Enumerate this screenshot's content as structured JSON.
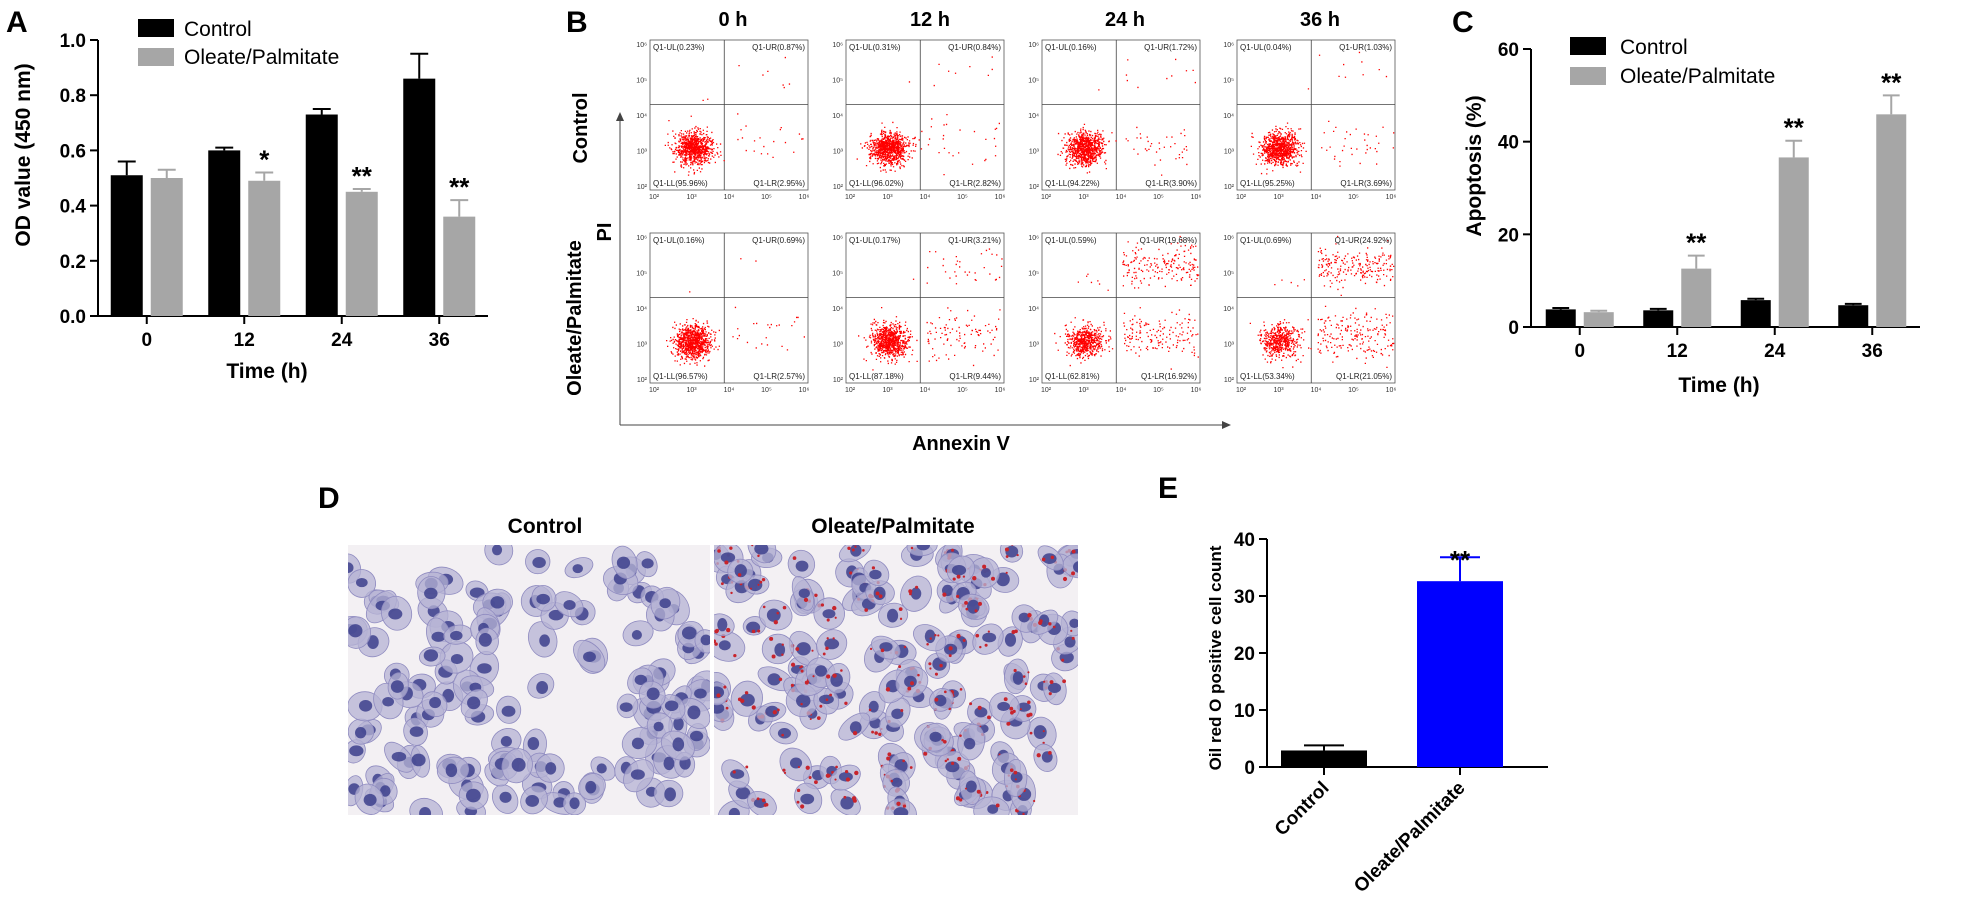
{
  "colors": {
    "control": "#000000",
    "oleate": "#a6a6a6",
    "oil_treated": "#0000ff",
    "flow_dot": "#ff0000",
    "stain_bg": "#f3f0f3",
    "nucleus": "#3c3f8c",
    "cytoplasm": "#b6b3d4",
    "lipid": "#c8242c"
  },
  "icons": {
    "micro_control": "hematoxylin-stained-cells-image",
    "micro_oleate": "oil-red-o-stained-cells-image"
  },
  "panel_letters": [
    "A",
    "B",
    "C",
    "D",
    "E"
  ],
  "chart_data": [
    {
      "panel": "A",
      "type": "bar",
      "categories": [
        "0",
        "12",
        "24",
        "36"
      ],
      "xlabel": "Time (h)",
      "ylabel": "OD value (450 nm)",
      "ylim": [
        0,
        1.0
      ],
      "yticks": [
        "0.0",
        "0.2",
        "0.4",
        "0.6",
        "0.8",
        "1.0"
      ],
      "legend": "top-left",
      "series": [
        {
          "name": "Control",
          "values": [
            0.51,
            0.6,
            0.73,
            0.86
          ],
          "errors": [
            0.05,
            0.01,
            0.02,
            0.09
          ]
        },
        {
          "name": "Oleate/Palmitate",
          "values": [
            0.5,
            0.49,
            0.45,
            0.36
          ],
          "errors": [
            0.03,
            0.03,
            0.01,
            0.06
          ]
        }
      ],
      "annotations": [
        "",
        "*",
        "**",
        "**"
      ]
    },
    {
      "panel": "B",
      "type": "scatter",
      "columns": [
        "0 h",
        "12 h",
        "24 h",
        "36 h"
      ],
      "rows": [
        "Control",
        "Oleate/Palmitate"
      ],
      "xlabel": "Annexin V",
      "ylabel": "PI",
      "tick_labels": [
        "10²",
        "10³",
        "10⁴",
        "10⁵",
        "10⁶"
      ],
      "quadrants": [
        [
          {
            "UL": "Q1-UL(0.23%)",
            "UR": "Q1-UR(0.87%)",
            "LL": "Q1-LL(95.96%)",
            "LR": "Q1-LR(2.95%)"
          },
          {
            "UL": "Q1-UL(0.31%)",
            "UR": "Q1-UR(0.84%)",
            "LL": "Q1-LL(96.02%)",
            "LR": "Q1-LR(2.82%)"
          },
          {
            "UL": "Q1-UL(0.16%)",
            "UR": "Q1-UR(1.72%)",
            "LL": "Q1-LL(94.22%)",
            "LR": "Q1-LR(3.90%)"
          },
          {
            "UL": "Q1-UL(0.04%)",
            "UR": "Q1-UR(1.03%)",
            "LL": "Q1-LL(95.25%)",
            "LR": "Q1-LR(3.69%)"
          }
        ],
        [
          {
            "UL": "Q1-UL(0.16%)",
            "UR": "Q1-UR(0.69%)",
            "LL": "Q1-LL(96.57%)",
            "LR": "Q1-LR(2.57%)"
          },
          {
            "UL": "Q1-UL(0.17%)",
            "UR": "Q1-UR(3.21%)",
            "LL": "Q1-LL(87.18%)",
            "LR": "Q1-LR(9.44%)"
          },
          {
            "UL": "Q1-UL(0.59%)",
            "UR": "Q1-UR(19.68%)",
            "LL": "Q1-LL(62.81%)",
            "LR": "Q1-LR(16.92%)"
          },
          {
            "UL": "Q1-UL(0.69%)",
            "UR": "Q1-UR(24.92%)",
            "LL": "Q1-LL(53.34%)",
            "LR": "Q1-LR(21.05%)"
          }
        ]
      ]
    },
    {
      "panel": "C",
      "type": "bar",
      "categories": [
        "0",
        "12",
        "24",
        "36"
      ],
      "xlabel": "Time (h)",
      "ylabel": "Apoptosis (%)",
      "ylim": [
        0,
        60
      ],
      "yticks": [
        "0",
        "20",
        "40",
        "60"
      ],
      "legend": "top-left",
      "series": [
        {
          "name": "Control",
          "values": [
            3.8,
            3.6,
            5.8,
            4.7
          ],
          "errors": [
            0.3,
            0.3,
            0.3,
            0.3
          ]
        },
        {
          "name": "Oleate/Palmitate",
          "values": [
            3.2,
            12.6,
            36.6,
            45.9
          ],
          "errors": [
            0.3,
            2.8,
            3.6,
            4.1
          ]
        }
      ],
      "annotations": [
        "",
        "**",
        "**",
        "**"
      ]
    },
    {
      "panel": "D",
      "type": "image",
      "labels": [
        "Control",
        "Oleate/Palmitate"
      ]
    },
    {
      "panel": "E",
      "type": "bar",
      "categories": [
        "Control",
        "Oleate/Palmitate"
      ],
      "xlabel": "",
      "ylabel": "Oil red O positive cell count",
      "ylim": [
        0,
        40
      ],
      "yticks": [
        "0",
        "10",
        "20",
        "30",
        "40"
      ],
      "values": [
        2.9,
        32.6
      ],
      "errors": [
        0.9,
        4.2
      ],
      "annotations": [
        "",
        "**"
      ]
    }
  ]
}
